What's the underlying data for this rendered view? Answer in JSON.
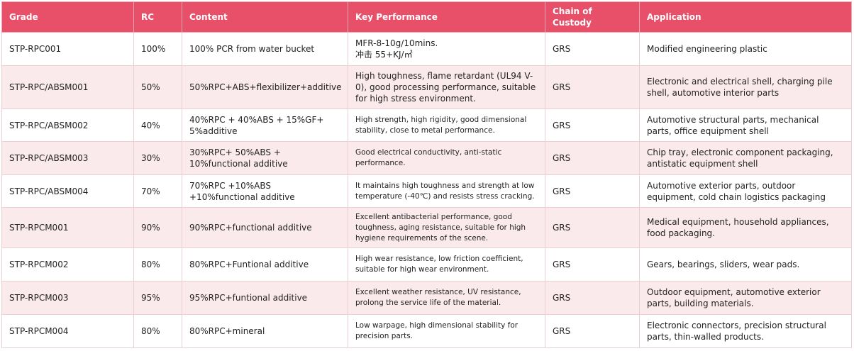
{
  "headers": {
    "grade": "Grade",
    "rc": "RC",
    "content": "Content",
    "performance": "Key Performance",
    "custody": "Chain of Custody",
    "application": "Application"
  },
  "rows": [
    {
      "grade": "STP-RPC001",
      "rc": "100%",
      "content": "100% PCR from water bucket",
      "performance_l1": "MFR-8-10g/10mins.",
      "performance_l2": "冲击 55+KJ/㎡",
      "custody": "GRS",
      "application": "Modified engineering plastic"
    },
    {
      "grade": "STP-RPC/ABSM001",
      "rc": "50%",
      "content": "50%RPC+ABS+flexibilizer+additive",
      "performance": "High toughness, flame retardant (UL94 V-0), good processing performance, suitable for high stress environment.",
      "custody": "GRS",
      "application": "Electronic and electrical shell, charging pile shell, automotive interior parts"
    },
    {
      "grade": "STP-RPC/ABSM002",
      "rc": "40%",
      "content": "40%RPC + 40%ABS + 15%GF+ 5%additive",
      "performance": "High strength, high rigidity, good dimensional stability, close to metal performance.",
      "custody": "GRS",
      "application": "Automotive structural parts, mechanical parts, office equipment shell"
    },
    {
      "grade": "STP-RPC/ABSM003",
      "rc": "30%",
      "content": "30%RPC+ 50%ABS + 10%functional additive",
      "performance": "Good electrical conductivity, anti-static performance.",
      "custody": "GRS",
      "application": "Chip tray, electronic component packaging, antistatic equipment shell"
    },
    {
      "grade": "STP-RPC/ABSM004",
      "rc": "70%",
      "content": "70%RPC +10%ABS +10%functional additive",
      "performance": "It maintains high toughness and strength at low temperature (-40℃) and resists stress cracking.",
      "custody": "GRS",
      "application": "Automotive exterior parts, outdoor equipment, cold chain logistics packaging"
    },
    {
      "grade": "STP-RPCM001",
      "rc": "90%",
      "content": "90%RPC+functional additive",
      "performance": "Excellent antibacterial performance, good toughness, aging resistance, suitable for high hygiene requirements of the scene.",
      "custody": "GRS",
      "application": "Medical equipment, household appliances, food packaging."
    },
    {
      "grade": "STP-RPCM002",
      "rc": "80%",
      "content": "80%RPC+Funtional additive",
      "performance": "High wear resistance, low friction coefficient, suitable for high wear environment.",
      "custody": "GRS",
      "application": "Gears, bearings, sliders, wear pads."
    },
    {
      "grade": "STP-RPCM003",
      "rc": "95%",
      "content": "95%RPC+funtional additive",
      "performance": "Excellent weather resistance, UV resistance, prolong the service life of the material.",
      "custody": "GRS",
      "application": "Outdoor equipment, automotive exterior parts, building materials."
    },
    {
      "grade": "STP-RPCM004",
      "rc": "80%",
      "content": "80%RPC+mineral",
      "performance": "Low warpage, high dimensional stability for precision parts.",
      "custody": "GRS",
      "application": "Electronic connectors, precision structural parts, thin-walled products."
    }
  ]
}
